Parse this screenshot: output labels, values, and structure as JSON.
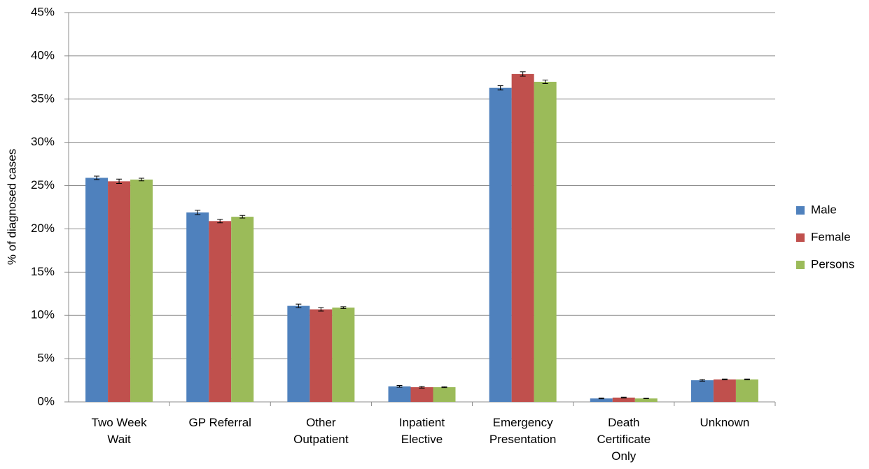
{
  "chart_data": {
    "type": "bar",
    "y_label": "% of diagnosed cases",
    "categories": [
      "Two Week Wait",
      "GP Referral",
      "Other Outpatient",
      "Inpatient Elective",
      "Emergency Presentation",
      "Death Certificate Only",
      "Unknown"
    ],
    "series": [
      {
        "name": "Male",
        "color": "#4f81bd",
        "values": [
          25.9,
          21.9,
          11.1,
          1.8,
          36.3,
          0.4,
          2.5
        ],
        "errors": [
          0.2,
          0.25,
          0.2,
          0.1,
          0.25,
          0.05,
          0.1
        ]
      },
      {
        "name": "Female",
        "color": "#c0504d",
        "values": [
          25.5,
          20.9,
          10.7,
          1.7,
          37.9,
          0.5,
          2.6
        ],
        "errors": [
          0.25,
          0.2,
          0.2,
          0.1,
          0.25,
          0.05,
          0.05
        ]
      },
      {
        "name": "Persons",
        "color": "#9bbb59",
        "values": [
          25.7,
          21.4,
          10.9,
          1.7,
          37.0,
          0.4,
          2.6
        ],
        "errors": [
          0.15,
          0.15,
          0.1,
          0.05,
          0.2,
          0.03,
          0.05
        ]
      }
    ],
    "ylim": [
      0,
      45
    ],
    "yticks": [
      {
        "value": 0,
        "label": "0%"
      },
      {
        "value": 5,
        "label": "5%"
      },
      {
        "value": 10,
        "label": "10%"
      },
      {
        "value": 15,
        "label": "15%"
      },
      {
        "value": 20,
        "label": "20%"
      },
      {
        "value": 25,
        "label": "25%"
      },
      {
        "value": 30,
        "label": "30%"
      },
      {
        "value": 35,
        "label": "35%"
      },
      {
        "value": 40,
        "label": "40%"
      },
      {
        "value": 45,
        "label": "45%"
      }
    ],
    "grid": true,
    "legend": "right"
  }
}
